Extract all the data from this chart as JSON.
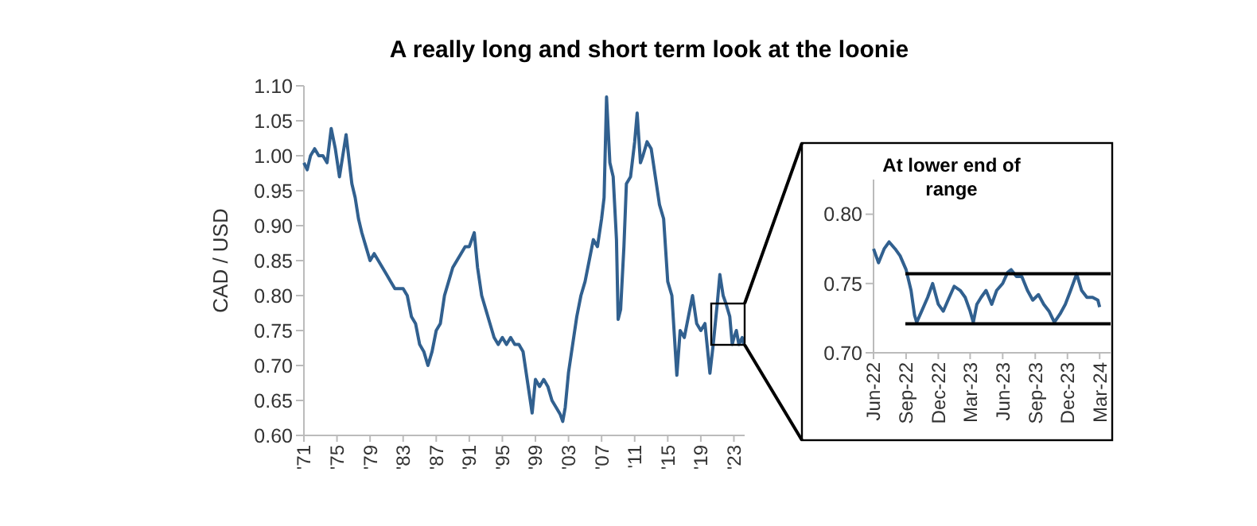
{
  "chart_data": [
    {
      "type": "line",
      "title": "A really long and short term look at the loonie",
      "ylabel": "CAD / USD",
      "xlim": [
        1971,
        2024.3
      ],
      "xticks": [
        {
          "value": 1971,
          "label": "'71"
        },
        {
          "value": 1975,
          "label": "'75"
        },
        {
          "value": 1979,
          "label": "'79"
        },
        {
          "value": 1983,
          "label": "'83"
        },
        {
          "value": 1987,
          "label": "'87"
        },
        {
          "value": 1991,
          "label": "'91"
        },
        {
          "value": 1995,
          "label": "'95"
        },
        {
          "value": 1999,
          "label": "'99"
        },
        {
          "value": 2003,
          "label": "'03"
        },
        {
          "value": 2007,
          "label": "'07"
        },
        {
          "value": 2011,
          "label": "'11"
        },
        {
          "value": 2015,
          "label": "'15"
        },
        {
          "value": 2019,
          "label": "'19"
        },
        {
          "value": 2023,
          "label": "'23"
        }
      ],
      "ylim": [
        0.6,
        1.1
      ],
      "yticks": [
        {
          "value": 0.6,
          "label": "0.60"
        },
        {
          "value": 0.65,
          "label": "0.65"
        },
        {
          "value": 0.7,
          "label": "0.70"
        },
        {
          "value": 0.75,
          "label": "0.75"
        },
        {
          "value": 0.8,
          "label": "0.80"
        },
        {
          "value": 0.85,
          "label": "0.85"
        },
        {
          "value": 0.9,
          "label": "0.90"
        },
        {
          "value": 0.95,
          "label": "0.95"
        },
        {
          "value": 1.0,
          "label": "1.00"
        },
        {
          "value": 1.05,
          "label": "1.05"
        },
        {
          "value": 1.1,
          "label": "1.10"
        }
      ],
      "series": [
        {
          "color": "#31608f",
          "x": [
            1971,
            1971.4,
            1971.8,
            1972.3,
            1972.8,
            1973.3,
            1973.8,
            1974.3,
            1974.8,
            1975.3,
            1975.7,
            1976.1,
            1976.5,
            1976.8,
            1977.2,
            1977.6,
            1978,
            1978.5,
            1979,
            1979.5,
            1980,
            1980.5,
            1981,
            1981.5,
            1982,
            1982.5,
            1983,
            1983.5,
            1984,
            1984.5,
            1985,
            1985.5,
            1986,
            1986.5,
            1987,
            1987.5,
            1988,
            1988.5,
            1989,
            1989.5,
            1990,
            1990.5,
            1991,
            1991.6,
            1992,
            1992.5,
            1993,
            1993.5,
            1994,
            1994.5,
            1995,
            1995.5,
            1996,
            1996.5,
            1997,
            1997.5,
            1998,
            1998.6,
            1999,
            1999.5,
            2000,
            2000.5,
            2001,
            2001.5,
            2002,
            2002.3,
            2002.6,
            2003,
            2003.5,
            2004,
            2004.5,
            2005,
            2005.5,
            2006,
            2006.5,
            2007,
            2007.3,
            2007.6,
            2008,
            2008.4,
            2008.8,
            2009,
            2009.3,
            2009.7,
            2010,
            2010.5,
            2011,
            2011.3,
            2011.7,
            2012,
            2012.5,
            2013,
            2013.5,
            2014,
            2014.5,
            2015,
            2015.5,
            2016.1,
            2016.5,
            2017,
            2017.5,
            2018,
            2018.5,
            2019,
            2019.5,
            2020.1,
            2020.5,
            2021,
            2021.3,
            2021.7,
            2022,
            2022.5,
            2022.8,
            2023,
            2023.3,
            2023.6,
            2024,
            2024.2
          ],
          "values": [
            0.99,
            0.98,
            1.0,
            1.01,
            1.0,
            1.0,
            0.99,
            1.039,
            1.01,
            0.97,
            1.0,
            1.03,
            0.99,
            0.96,
            0.94,
            0.91,
            0.89,
            0.87,
            0.85,
            0.86,
            0.85,
            0.84,
            0.83,
            0.82,
            0.81,
            0.81,
            0.81,
            0.8,
            0.77,
            0.76,
            0.73,
            0.72,
            0.7,
            0.72,
            0.75,
            0.76,
            0.8,
            0.82,
            0.84,
            0.85,
            0.86,
            0.87,
            0.87,
            0.89,
            0.84,
            0.8,
            0.78,
            0.76,
            0.74,
            0.73,
            0.74,
            0.73,
            0.74,
            0.73,
            0.73,
            0.72,
            0.68,
            0.632,
            0.68,
            0.67,
            0.68,
            0.67,
            0.65,
            0.64,
            0.63,
            0.62,
            0.64,
            0.69,
            0.73,
            0.77,
            0.8,
            0.82,
            0.85,
            0.88,
            0.87,
            0.91,
            0.94,
            1.084,
            0.99,
            0.97,
            0.88,
            0.766,
            0.78,
            0.87,
            0.96,
            0.97,
            1.02,
            1.061,
            0.99,
            1.0,
            1.02,
            1.01,
            0.97,
            0.93,
            0.91,
            0.82,
            0.8,
            0.686,
            0.75,
            0.74,
            0.77,
            0.8,
            0.76,
            0.75,
            0.76,
            0.689,
            0.73,
            0.79,
            0.83,
            0.8,
            0.79,
            0.77,
            0.73,
            0.74,
            0.75,
            0.73,
            0.74,
            0.73
          ]
        }
      ]
    },
    {
      "type": "line",
      "title": "At lower end of range",
      "xlim": [
        "2022-06-01",
        "2024-04-01"
      ],
      "xticks": [
        {
          "value": "2022-06-01",
          "label": "Jun-22"
        },
        {
          "value": "2022-09-01",
          "label": "Sep-22"
        },
        {
          "value": "2022-12-01",
          "label": "Dec-22"
        },
        {
          "value": "2023-03-01",
          "label": "Mar-23"
        },
        {
          "value": "2023-06-01",
          "label": "Jun-23"
        },
        {
          "value": "2023-09-01",
          "label": "Sep-23"
        },
        {
          "value": "2023-12-01",
          "label": "Dec-23"
        },
        {
          "value": "2024-03-01",
          "label": "Mar-24"
        }
      ],
      "ylim": [
        0.7,
        0.825
      ],
      "yticks": [
        {
          "value": 0.7,
          "label": "0.70"
        },
        {
          "value": 0.75,
          "label": "0.75"
        },
        {
          "value": 0.8,
          "label": "0.80"
        }
      ],
      "ref_lines": [
        {
          "axis": "y",
          "value": 0.757,
          "color": "#000000"
        },
        {
          "axis": "y",
          "value": 0.721,
          "color": "#000000"
        }
      ],
      "series": [
        {
          "color": "#31608f",
          "x": [
            "2022-06-01",
            "2022-06-15",
            "2022-07-01",
            "2022-07-15",
            "2022-08-01",
            "2022-08-15",
            "2022-09-01",
            "2022-09-15",
            "2022-09-25",
            "2022-10-01",
            "2022-10-15",
            "2022-11-01",
            "2022-11-15",
            "2022-12-01",
            "2022-12-15",
            "2023-01-01",
            "2023-01-15",
            "2023-02-01",
            "2023-02-15",
            "2023-03-01",
            "2023-03-10",
            "2023-03-20",
            "2023-04-01",
            "2023-04-15",
            "2023-05-01",
            "2023-05-15",
            "2023-06-01",
            "2023-06-15",
            "2023-06-25",
            "2023-07-10",
            "2023-07-25",
            "2023-08-10",
            "2023-08-25",
            "2023-09-10",
            "2023-09-25",
            "2023-10-10",
            "2023-10-25",
            "2023-11-10",
            "2023-11-25",
            "2023-12-10",
            "2023-12-27",
            "2024-01-10",
            "2024-01-25",
            "2024-02-10",
            "2024-02-25",
            "2024-03-01"
          ],
          "values": [
            0.775,
            0.765,
            0.775,
            0.78,
            0.775,
            0.77,
            0.76,
            0.745,
            0.727,
            0.722,
            0.73,
            0.74,
            0.75,
            0.735,
            0.73,
            0.74,
            0.748,
            0.745,
            0.74,
            0.73,
            0.722,
            0.735,
            0.74,
            0.745,
            0.735,
            0.745,
            0.75,
            0.758,
            0.76,
            0.755,
            0.755,
            0.745,
            0.738,
            0.742,
            0.735,
            0.73,
            0.722,
            0.728,
            0.735,
            0.745,
            0.757,
            0.745,
            0.74,
            0.74,
            0.738,
            0.733
          ]
        }
      ]
    }
  ]
}
